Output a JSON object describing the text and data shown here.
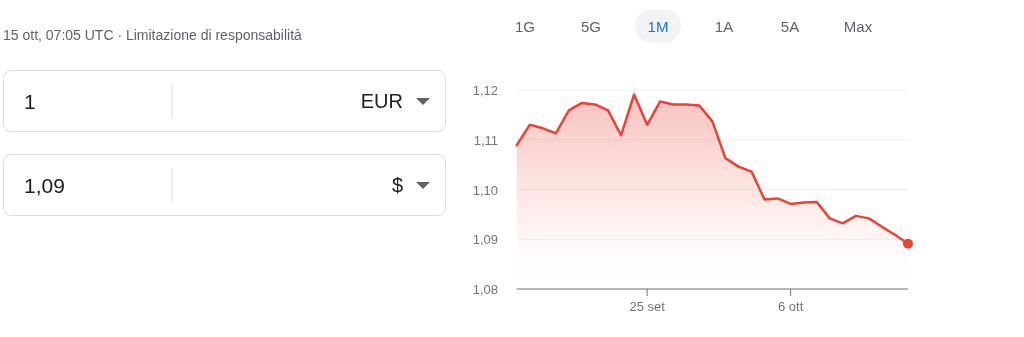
{
  "chart_data": {
    "type": "area",
    "annotations": [
      "15 ott, 07:05 UTC · Limitazione di responsabilità",
      "1G",
      "5G",
      "1M",
      "1A",
      "5A",
      "Max",
      "1",
      "EUR",
      "1,09",
      "$"
    ],
    "x": [
      "--09-15",
      "--09-16",
      "--09-17",
      "--09-18",
      "--09-19",
      "--09-20",
      "--09-21",
      "--09-22",
      "--09-23",
      "--09-24",
      "--09-25",
      "--09-26",
      "--09-27",
      "--09-28",
      "--09-29",
      "--09-30",
      "--10-01",
      "--10-02",
      "--10-03",
      "--10-04",
      "--10-05",
      "--10-06",
      "--10-07",
      "--10-08",
      "--10-09",
      "--10-10",
      "--10-11",
      "--10-12",
      "--10-13",
      "--10-14",
      "--10-15"
    ],
    "series": [
      {
        "color": "#ea4335",
        "values": [
          1.1089,
          1.113,
          1.1123,
          1.1113,
          1.1159,
          1.1174,
          1.1171,
          1.1159,
          1.1109,
          1.1191,
          1.113,
          1.1177,
          1.1171,
          1.1171,
          1.1169,
          1.1137,
          1.1063,
          1.1046,
          1.1036,
          1.098,
          1.0982,
          1.0971,
          1.0974,
          1.0975,
          1.0942,
          1.0932,
          1.0947,
          1.0942,
          1.0925,
          1.0909,
          1.0891
        ]
      },
      {
        "type": "scatter",
        "color": "#ea4335",
        "x": [
          "--10-15"
        ],
        "values": [
          1.0891
        ]
      }
    ],
    "xlim": [
      "--09-15",
      "--10-15"
    ],
    "xticks": [
      {
        "value": "--09-25",
        "label": "25 set"
      },
      {
        "value": "--10-06",
        "label": "6 ott"
      }
    ],
    "ylim": [
      1.08,
      1.12
    ],
    "yticks": [
      {
        "value": 1.08,
        "label": "1,08"
      },
      {
        "value": 1.09,
        "label": "1,09"
      },
      {
        "value": 1.1,
        "label": "1,10"
      },
      {
        "value": 1.11,
        "label": "1,11"
      },
      {
        "value": 1.12,
        "label": "1,12"
      }
    ],
    "grid": "y"
  }
}
